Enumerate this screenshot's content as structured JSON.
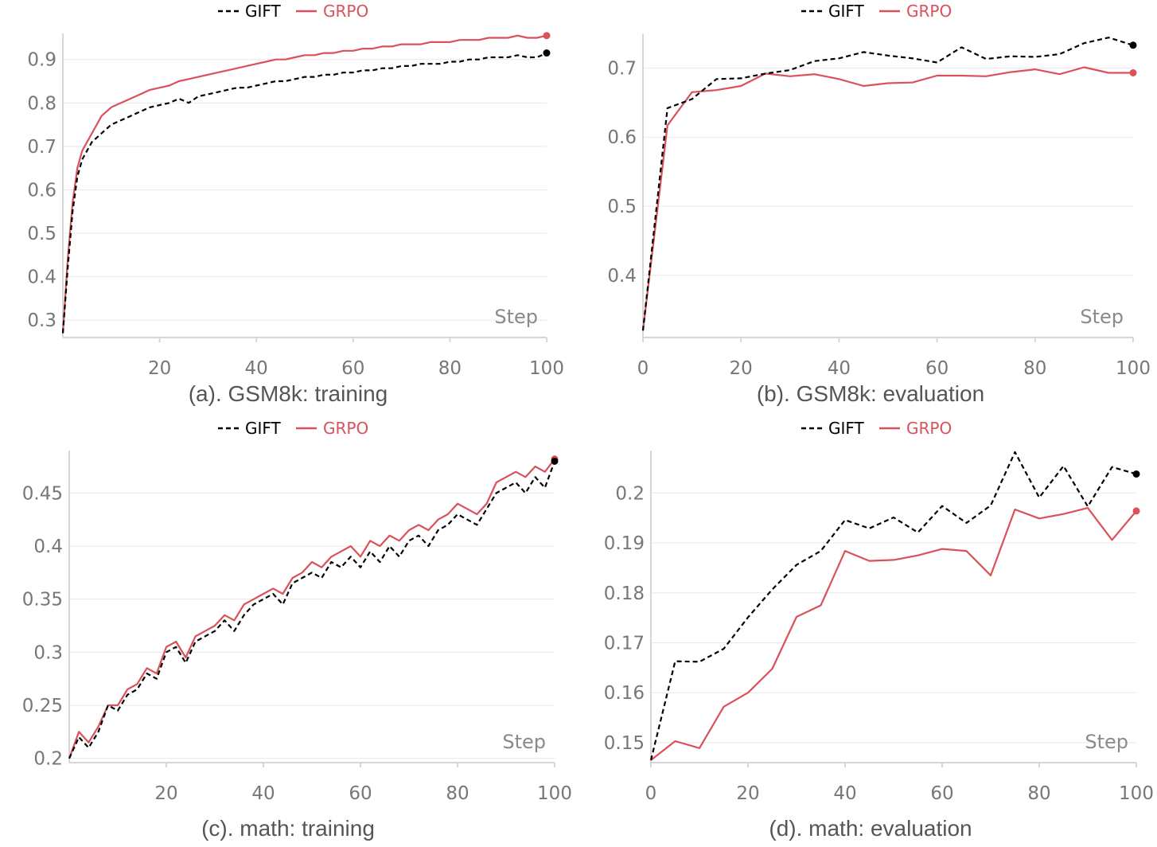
{
  "chart_data": [
    {
      "type": "line",
      "caption": "(a). GSM8k: training",
      "xlabel": "Step",
      "xlim": [
        0,
        100
      ],
      "ylim": [
        0.26,
        0.96
      ],
      "xticks": [
        20,
        40,
        60,
        80,
        100
      ],
      "xtick_labels": [
        "20",
        "40",
        "60",
        "80",
        "100"
      ],
      "yticks": [
        0.3,
        0.4,
        0.5,
        0.6,
        0.7,
        0.8,
        0.9
      ],
      "ytick_labels": [
        "0.3",
        "0.4",
        "0.5",
        "0.6",
        "0.7",
        "0.8",
        "0.9"
      ],
      "legend": [
        "GIFT",
        "GRPO"
      ],
      "legend_position": "top-center",
      "series": [
        {
          "name": "GIFT",
          "color": "#000000",
          "dash": "dashed",
          "x": [
            0,
            1,
            2,
            3,
            4,
            5,
            6,
            7,
            8,
            10,
            12,
            14,
            16,
            18,
            20,
            22,
            24,
            26,
            28,
            30,
            32,
            34,
            36,
            38,
            40,
            42,
            44,
            46,
            48,
            50,
            52,
            54,
            56,
            58,
            60,
            62,
            64,
            66,
            68,
            70,
            72,
            74,
            76,
            78,
            80,
            82,
            84,
            86,
            88,
            90,
            92,
            94,
            96,
            98,
            100
          ],
          "values": [
            0.27,
            0.42,
            0.55,
            0.63,
            0.67,
            0.69,
            0.71,
            0.72,
            0.73,
            0.75,
            0.76,
            0.77,
            0.78,
            0.79,
            0.795,
            0.8,
            0.81,
            0.8,
            0.815,
            0.82,
            0.825,
            0.83,
            0.835,
            0.835,
            0.84,
            0.845,
            0.85,
            0.85,
            0.855,
            0.86,
            0.86,
            0.865,
            0.865,
            0.87,
            0.87,
            0.875,
            0.875,
            0.88,
            0.88,
            0.885,
            0.885,
            0.89,
            0.89,
            0.89,
            0.895,
            0.895,
            0.9,
            0.9,
            0.905,
            0.905,
            0.905,
            0.91,
            0.905,
            0.905,
            0.915
          ]
        },
        {
          "name": "GRPO",
          "color": "#d9515a",
          "dash": "solid",
          "x": [
            0,
            1,
            2,
            3,
            4,
            5,
            6,
            7,
            8,
            10,
            12,
            14,
            16,
            18,
            20,
            22,
            24,
            26,
            28,
            30,
            32,
            34,
            36,
            38,
            40,
            42,
            44,
            46,
            48,
            50,
            52,
            54,
            56,
            58,
            60,
            62,
            64,
            66,
            68,
            70,
            72,
            74,
            76,
            78,
            80,
            82,
            84,
            86,
            88,
            90,
            92,
            94,
            96,
            98,
            100
          ],
          "values": [
            0.27,
            0.44,
            0.57,
            0.65,
            0.69,
            0.71,
            0.73,
            0.75,
            0.77,
            0.79,
            0.8,
            0.81,
            0.82,
            0.83,
            0.835,
            0.84,
            0.85,
            0.855,
            0.86,
            0.865,
            0.87,
            0.875,
            0.88,
            0.885,
            0.89,
            0.895,
            0.9,
            0.9,
            0.905,
            0.91,
            0.91,
            0.915,
            0.915,
            0.92,
            0.92,
            0.925,
            0.925,
            0.93,
            0.93,
            0.935,
            0.935,
            0.935,
            0.94,
            0.94,
            0.94,
            0.945,
            0.945,
            0.945,
            0.95,
            0.95,
            0.95,
            0.955,
            0.95,
            0.95,
            0.955
          ]
        }
      ]
    },
    {
      "type": "line",
      "caption": "(b). GSM8k: evaluation",
      "xlabel": "Step",
      "xlim": [
        0,
        100
      ],
      "ylim": [
        0.31,
        0.75
      ],
      "xticks": [
        0,
        20,
        40,
        60,
        80,
        100
      ],
      "xtick_labels": [
        "0",
        "20",
        "40",
        "60",
        "80",
        "100"
      ],
      "yticks": [
        0.4,
        0.5,
        0.6,
        0.7
      ],
      "ytick_labels": [
        "0.4",
        "0.5",
        "0.6",
        "0.7"
      ],
      "legend": [
        "GIFT",
        "GRPO"
      ],
      "legend_position": "top-center",
      "series": [
        {
          "name": "GIFT",
          "color": "#000000",
          "dash": "dashed",
          "x": [
            0,
            5,
            10,
            15,
            20,
            25,
            30,
            35,
            40,
            45,
            50,
            55,
            60,
            65,
            70,
            75,
            80,
            85,
            90,
            95,
            100
          ],
          "values": [
            0.32,
            0.642,
            0.655,
            0.684,
            0.685,
            0.692,
            0.697,
            0.71,
            0.714,
            0.723,
            0.718,
            0.714,
            0.708,
            0.73,
            0.713,
            0.717,
            0.716,
            0.72,
            0.736,
            0.744,
            0.733
          ]
        },
        {
          "name": "GRPO",
          "color": "#d9515a",
          "dash": "solid",
          "x": [
            0,
            5,
            10,
            15,
            20,
            25,
            30,
            35,
            40,
            45,
            50,
            55,
            60,
            65,
            70,
            75,
            80,
            85,
            90,
            95,
            100
          ],
          "values": [
            0.32,
            0.617,
            0.665,
            0.668,
            0.674,
            0.692,
            0.688,
            0.691,
            0.684,
            0.674,
            0.678,
            0.679,
            0.689,
            0.689,
            0.688,
            0.694,
            0.698,
            0.691,
            0.701,
            0.693,
            0.693
          ]
        }
      ]
    },
    {
      "type": "line",
      "caption": "(c). math: training",
      "xlabel": "Step",
      "xlim": [
        0,
        100
      ],
      "ylim": [
        0.196,
        0.49
      ],
      "xticks": [
        20,
        40,
        60,
        80,
        100
      ],
      "xtick_labels": [
        "20",
        "40",
        "60",
        "80",
        "100"
      ],
      "yticks": [
        0.2,
        0.25,
        0.3,
        0.35,
        0.4,
        0.45
      ],
      "ytick_labels": [
        "0.2",
        "0.25",
        "0.3",
        "0.35",
        "0.4",
        "0.45"
      ],
      "legend": [
        "GIFT",
        "GRPO"
      ],
      "legend_position": "top-center",
      "series": [
        {
          "name": "GIFT",
          "color": "#000000",
          "dash": "dashed",
          "x": [
            0,
            2,
            4,
            6,
            8,
            10,
            12,
            14,
            16,
            18,
            20,
            22,
            24,
            26,
            28,
            30,
            32,
            34,
            36,
            38,
            40,
            42,
            44,
            46,
            48,
            50,
            52,
            54,
            56,
            58,
            60,
            62,
            64,
            66,
            68,
            70,
            72,
            74,
            76,
            78,
            80,
            82,
            84,
            86,
            88,
            90,
            92,
            94,
            96,
            98,
            100
          ],
          "values": [
            0.2,
            0.22,
            0.21,
            0.225,
            0.25,
            0.245,
            0.26,
            0.265,
            0.28,
            0.275,
            0.3,
            0.305,
            0.29,
            0.31,
            0.315,
            0.32,
            0.33,
            0.32,
            0.335,
            0.345,
            0.35,
            0.355,
            0.345,
            0.365,
            0.37,
            0.375,
            0.37,
            0.385,
            0.38,
            0.39,
            0.38,
            0.395,
            0.385,
            0.4,
            0.39,
            0.405,
            0.41,
            0.4,
            0.415,
            0.42,
            0.43,
            0.425,
            0.42,
            0.435,
            0.45,
            0.455,
            0.46,
            0.45,
            0.465,
            0.455,
            0.48
          ]
        },
        {
          "name": "GRPO",
          "color": "#d9515a",
          "dash": "solid",
          "x": [
            0,
            2,
            4,
            6,
            8,
            10,
            12,
            14,
            16,
            18,
            20,
            22,
            24,
            26,
            28,
            30,
            32,
            34,
            36,
            38,
            40,
            42,
            44,
            46,
            48,
            50,
            52,
            54,
            56,
            58,
            60,
            62,
            64,
            66,
            68,
            70,
            72,
            74,
            76,
            78,
            80,
            82,
            84,
            86,
            88,
            90,
            92,
            94,
            96,
            98,
            100
          ],
          "values": [
            0.2,
            0.225,
            0.215,
            0.23,
            0.25,
            0.25,
            0.265,
            0.27,
            0.285,
            0.28,
            0.305,
            0.31,
            0.295,
            0.315,
            0.32,
            0.325,
            0.335,
            0.33,
            0.345,
            0.35,
            0.355,
            0.36,
            0.355,
            0.37,
            0.375,
            0.385,
            0.38,
            0.39,
            0.395,
            0.4,
            0.39,
            0.405,
            0.4,
            0.41,
            0.405,
            0.415,
            0.42,
            0.415,
            0.425,
            0.43,
            0.44,
            0.435,
            0.43,
            0.44,
            0.46,
            0.465,
            0.47,
            0.465,
            0.475,
            0.47,
            0.482
          ]
        }
      ]
    },
    {
      "type": "line",
      "caption": "(d). math: evaluation",
      "xlabel": "Step",
      "xlim": [
        0,
        100
      ],
      "ylim": [
        0.146,
        0.2085
      ],
      "xticks": [
        0,
        20,
        40,
        60,
        80,
        100
      ],
      "xtick_labels": [
        "0",
        "20",
        "40",
        "60",
        "80",
        "100"
      ],
      "yticks": [
        0.15,
        0.16,
        0.17,
        0.18,
        0.19,
        0.2
      ],
      "ytick_labels": [
        "0.15",
        "0.16",
        "0.17",
        "0.18",
        "0.19",
        "0.2"
      ],
      "legend": [
        "GIFT",
        "GRPO"
      ],
      "legend_position": "top-center",
      "series": [
        {
          "name": "GIFT",
          "color": "#000000",
          "dash": "dashed",
          "x": [
            0,
            5,
            10,
            15,
            20,
            25,
            30,
            35,
            40,
            45,
            50,
            55,
            60,
            65,
            70,
            75,
            80,
            85,
            90,
            95,
            100
          ],
          "values": [
            0.1465,
            0.1663,
            0.1662,
            0.1688,
            0.1751,
            0.1807,
            0.1856,
            0.1884,
            0.1946,
            0.1929,
            0.1951,
            0.1921,
            0.1974,
            0.194,
            0.1975,
            0.2082,
            0.1991,
            0.2054,
            0.1973,
            0.2052,
            0.2038
          ]
        },
        {
          "name": "GRPO",
          "color": "#d9515a",
          "dash": "solid",
          "x": [
            0,
            5,
            10,
            15,
            20,
            25,
            30,
            35,
            40,
            45,
            50,
            55,
            60,
            65,
            70,
            75,
            80,
            85,
            90,
            95,
            100
          ],
          "values": [
            0.1465,
            0.1503,
            0.1489,
            0.1572,
            0.16,
            0.1648,
            0.1752,
            0.1775,
            0.1884,
            0.1864,
            0.1866,
            0.1875,
            0.1888,
            0.1884,
            0.1835,
            0.1967,
            0.1949,
            0.1958,
            0.197,
            0.1906,
            0.1964
          ]
        }
      ]
    }
  ]
}
